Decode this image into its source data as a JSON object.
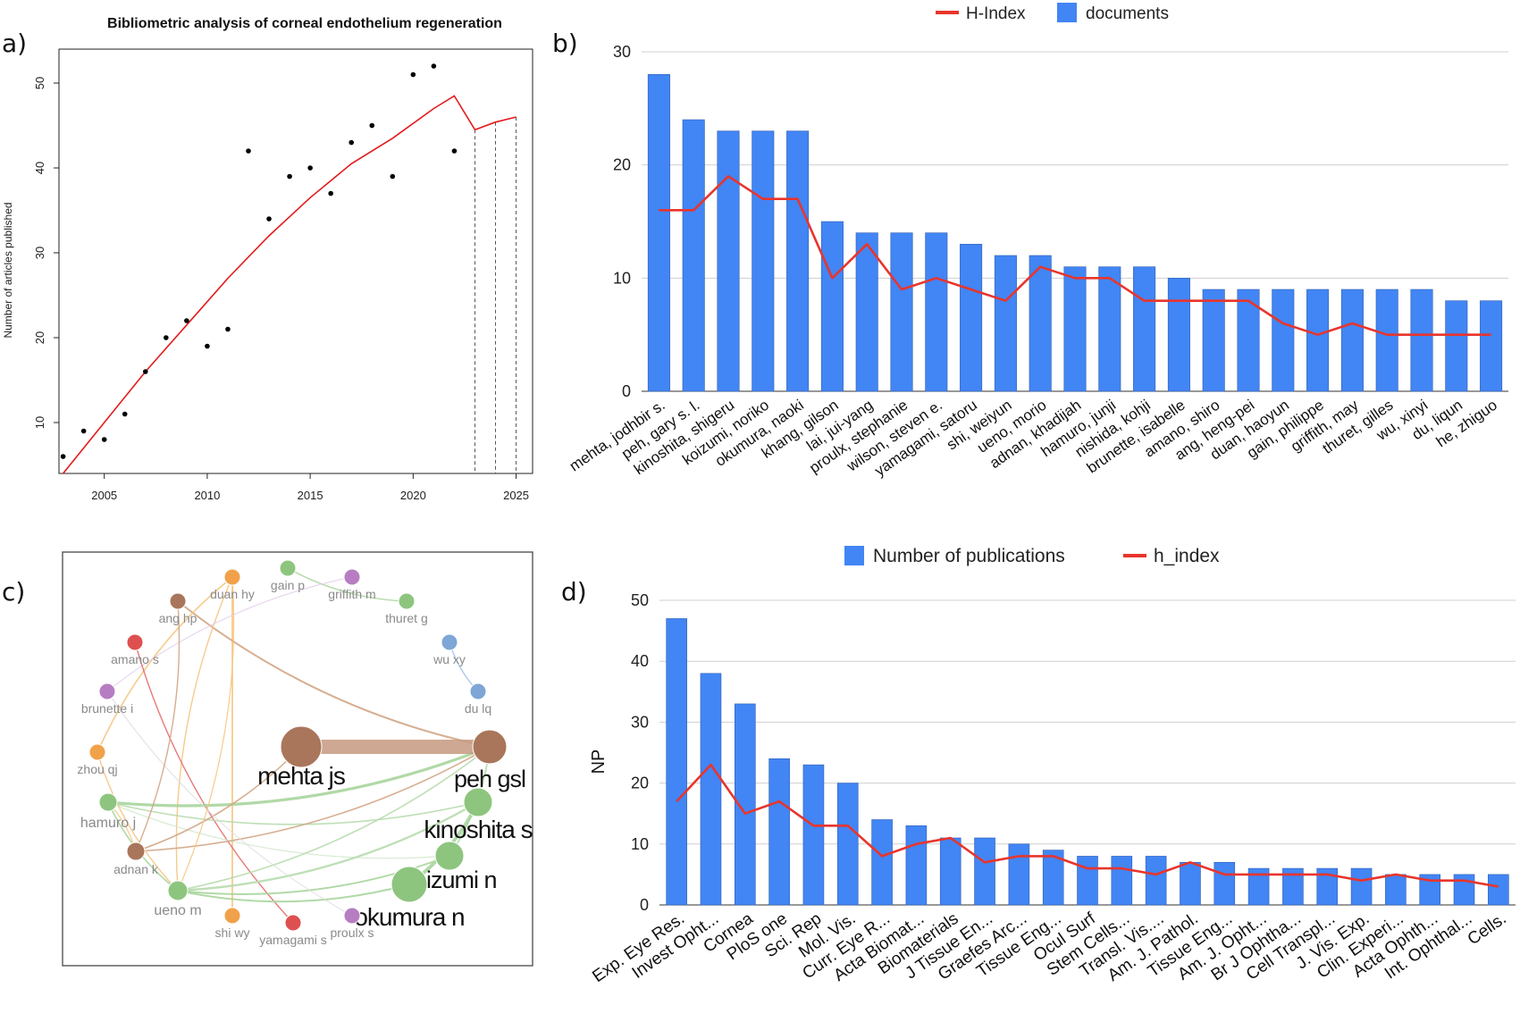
{
  "panels": {
    "a": "a)",
    "b": "b)",
    "c": "c)",
    "d": "d)"
  },
  "colors": {
    "bar": "#4285f4",
    "line": "#e8352c",
    "fit": "#e41a1c",
    "grid": "#cfcfcf"
  },
  "chart_data": [
    {
      "type": "scatter",
      "title": "Bibliometric analysis of corneal endothelium regeneration",
      "xlabel": "",
      "ylabel": "Number of articles published",
      "xlim": [
        2002.8,
        2025.8
      ],
      "ylim": [
        4,
        54
      ],
      "xticks": [
        2005,
        2010,
        2015,
        2020,
        2025
      ],
      "yticks": [
        10,
        20,
        30,
        40,
        50
      ],
      "points": {
        "x": [
          2003,
          2004,
          2005,
          2006,
          2007,
          2008,
          2009,
          2010,
          2011,
          2012,
          2013,
          2014,
          2015,
          2016,
          2017,
          2018,
          2019,
          2020,
          2021,
          2022
        ],
        "y": [
          6,
          9,
          8,
          11,
          16,
          20,
          22,
          19,
          21,
          42,
          34,
          39,
          40,
          37,
          43,
          45,
          39,
          51,
          52,
          42
        ]
      },
      "fit_line": {
        "x": [
          2003,
          2005,
          2007,
          2009,
          2011,
          2013,
          2015,
          2017,
          2019,
          2021,
          2022,
          2023,
          2024,
          2025
        ],
        "y": [
          4,
          10,
          16,
          21.5,
          27,
          32,
          36.5,
          40.5,
          43.5,
          47,
          48.5,
          44.5,
          45.4,
          46
        ]
      },
      "forecast_years": [
        2023,
        2024,
        2025
      ],
      "grid": false
    },
    {
      "type": "bar",
      "legend": [
        "H-Index",
        "documents"
      ],
      "legend_position": "top",
      "categories": [
        "mehta, jodhbir s.",
        "peh, gary s. l.",
        "kinoshita, shigeru",
        "koizumi, noriko",
        "okumura, naoki",
        "khang, gilson",
        "lai, jui-yang",
        "proulx, stephanie",
        "wilson, steven e.",
        "yamagami, satoru",
        "shi, weiyun",
        "ueno, morio",
        "adnan, khadijah",
        "hamuro, junji",
        "nishida, kohji",
        "brunette, isabelle",
        "amano, shiro",
        "ang, heng-pei",
        "duan, haoyun",
        "gain, philippe",
        "griffith, may",
        "thuret, gilles",
        "wu, xinyi",
        "du, liqun",
        "he, zhiguo"
      ],
      "series": [
        {
          "name": "documents",
          "values": [
            28,
            24,
            23,
            23,
            23,
            15,
            14,
            14,
            14,
            13,
            12,
            12,
            11,
            11,
            11,
            10,
            9,
            9,
            9,
            9,
            9,
            9,
            9,
            8,
            8
          ]
        },
        {
          "name": "H-Index",
          "values": [
            16,
            16,
            19,
            17,
            17,
            10,
            13,
            9,
            10,
            9,
            8,
            11,
            10,
            10,
            8,
            8,
            8,
            8,
            6,
            5,
            6,
            5,
            5,
            5,
            5
          ]
        }
      ],
      "ylim": [
        0,
        30
      ],
      "yticks": [
        0,
        10,
        20,
        30
      ],
      "grid": true
    },
    {
      "type": "network",
      "nodes": [
        "mehta js",
        "peh gsl",
        "kinoshita s",
        "koizumi n",
        "okumura n",
        "ueno m",
        "hamuro j",
        "adnan k",
        "zhou qj",
        "brunette i",
        "amano s",
        "ang hp",
        "duan hy",
        "gain p",
        "griffith m",
        "thuret g",
        "wu xy",
        "du lq",
        "shi wy",
        "yamagami s",
        "proulx s"
      ]
    },
    {
      "type": "bar",
      "legend": [
        "Number of publications",
        "h_index"
      ],
      "legend_position": "top",
      "ylabel": "NP",
      "categories": [
        "Exp. Eye Res.",
        "Invest Opht...",
        "Cornea",
        "PloS one",
        "Sci. Rep",
        "Mol. Vis.",
        "Curr. Eye R...",
        "Acta Biomat...",
        "Biomaterials",
        "J Tissue En...",
        "Graefes Arc...",
        "Tissue Eng...",
        "Ocul Surf",
        "Stem Cells...",
        "Transl. Vis....",
        "Am. J. Pathol.",
        "Tissue Eng...",
        "Am. J. Opht...",
        "Br J Ophtha...",
        "Cell Transpl...",
        "J. Vis. Exp.",
        "Clin. Experi...",
        "Acta Ophth...",
        "Int. Ophthal...",
        "Cells."
      ],
      "series": [
        {
          "name": "Number of publications",
          "values": [
            47,
            38,
            33,
            24,
            23,
            20,
            14,
            13,
            11,
            11,
            10,
            9,
            8,
            8,
            8,
            7,
            7,
            6,
            6,
            6,
            6,
            5,
            5,
            5,
            5
          ]
        },
        {
          "name": "h_index",
          "values": [
            17,
            23,
            15,
            17,
            13,
            13,
            8,
            10,
            11,
            7,
            8,
            8,
            6,
            6,
            5,
            7,
            5,
            5,
            5,
            5,
            4,
            5,
            4,
            4,
            3
          ]
        }
      ],
      "ylim": [
        0,
        50
      ],
      "yticks": [
        0,
        10,
        20,
        30,
        40,
        50
      ],
      "grid": true
    }
  ]
}
